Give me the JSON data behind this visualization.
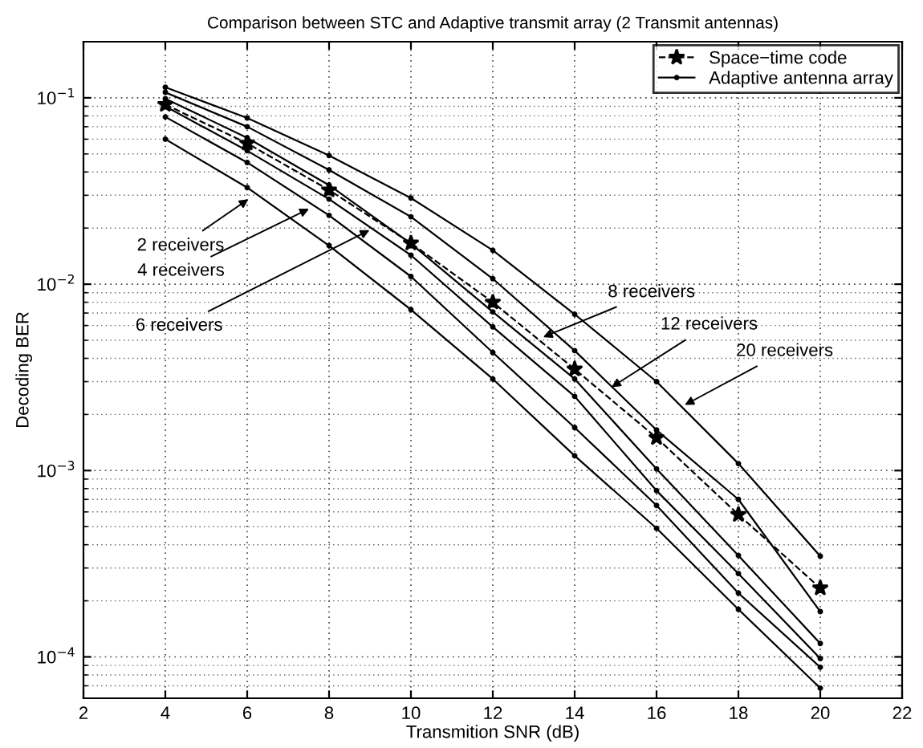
{
  "chart_data": {
    "type": "line",
    "title": "Comparison between STC and Adaptive transmit array (2 Transmit antennas)",
    "xlabel": "Transmition SNR (dB)",
    "ylabel": "Decoding BER",
    "x": [
      4,
      6,
      8,
      10,
      12,
      14,
      16,
      18,
      20
    ],
    "series": [
      {
        "name": "Space−time code",
        "color": "#000000",
        "marker": "star",
        "line_style": "dashed",
        "values": [
          0.092,
          0.057,
          0.032,
          0.0166,
          0.008,
          0.0035,
          0.0015,
          0.00058,
          0.000234
        ]
      },
      {
        "name": "Adaptive antenna array",
        "color": "#000000",
        "marker": "circle",
        "line_style": "solid",
        "values": [
          0.114,
          0.078,
          0.049,
          0.029,
          0.0152,
          0.0069,
          0.003,
          0.00109,
          0.000347
        ]
      },
      {
        "color": "#000000",
        "marker": "circle",
        "line_style": "solid",
        "values": [
          0.107,
          0.07,
          0.041,
          0.023,
          0.0107,
          0.0044,
          0.00165,
          0.0007,
          0.000175
        ]
      },
      {
        "color": "#000000",
        "marker": "circle",
        "line_style": "solid",
        "values": [
          0.099,
          0.061,
          0.034,
          0.0165,
          0.0071,
          0.0031,
          0.00102,
          0.00035,
          0.000118
        ]
      },
      {
        "color": "#000000",
        "marker": "circle",
        "line_style": "solid",
        "values": [
          0.09,
          0.052,
          0.0286,
          0.0143,
          0.0059,
          0.0025,
          0.00078,
          0.00028,
          9.8e-05
        ]
      },
      {
        "color": "#000000",
        "marker": "circle",
        "line_style": "solid",
        "values": [
          0.079,
          0.045,
          0.0234,
          0.011,
          0.0043,
          0.0017,
          0.00065,
          0.00022,
          8.8e-05
        ]
      },
      {
        "color": "#000000",
        "marker": "circle",
        "line_style": "solid",
        "values": [
          0.06,
          0.033,
          0.0161,
          0.0073,
          0.0031,
          0.0012,
          0.00049,
          0.00018,
          6.8e-05
        ]
      }
    ],
    "log": "y",
    "xlim": [
      2,
      22
    ],
    "xticks": [
      2,
      4,
      6,
      8,
      10,
      12,
      14,
      16,
      18,
      20,
      22
    ],
    "ylim": [
      6e-05,
      0.2
    ],
    "yticks": [
      {
        "value": 0.0001,
        "label": "10$^{−4}$"
      },
      {
        "value": 0.001,
        "label": "10$^{−3}$"
      },
      {
        "value": 0.01,
        "label": "10$^{−2}$"
      },
      {
        "value": 0.1,
        "label": "10$^{−1}$"
      }
    ],
    "grid": true,
    "legend": "top right",
    "annotations": [
      {
        "text": "2 receivers",
        "x": 6.03,
        "y": 0.0286
      },
      {
        "text": "4 receivers",
        "x": 7.51,
        "y": 0.0254
      },
      {
        "text": "6 receivers",
        "x": 8.99,
        "y": 0.0195
      },
      {
        "text": "8 receivers",
        "x": 13.23,
        "y": 0.0052
      },
      {
        "text": "12 receivers",
        "x": 14.9,
        "y": 0.0028
      },
      {
        "text": "20 receivers",
        "x": 16.69,
        "y": 0.00225
      }
    ]
  }
}
